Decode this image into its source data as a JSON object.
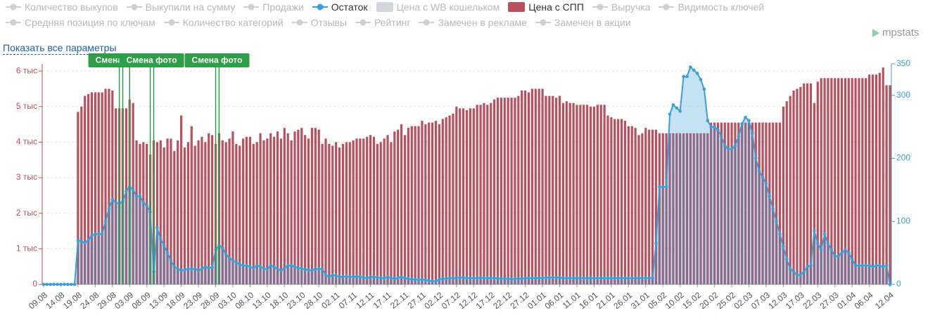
{
  "legend": [
    {
      "name": "Количество выкупов",
      "icon": "line",
      "color": "#cfcfcf",
      "active": false
    },
    {
      "name": "Выкупили на сумму",
      "icon": "line",
      "color": "#cfcfcf",
      "active": false
    },
    {
      "name": "Продажи",
      "icon": "line",
      "color": "#cfcfcf",
      "active": false
    },
    {
      "name": "Остаток",
      "icon": "line",
      "color": "#3a9fd6",
      "active": true
    },
    {
      "name": "Цена с WB кошельком",
      "icon": "rect",
      "color": "#d3d7db",
      "active": false
    },
    {
      "name": "Цена с СПП",
      "icon": "rect",
      "color": "#b9505e",
      "active": true
    },
    {
      "name": "Выручка",
      "icon": "line",
      "color": "#cfcfcf",
      "active": false
    },
    {
      "name": "Видимость ключей",
      "icon": "line",
      "color": "#cfcfcf",
      "active": false
    },
    {
      "name": "Средняя позиция по ключам",
      "icon": "line",
      "color": "#cfcfcf",
      "active": false
    },
    {
      "name": "Количество категорий",
      "icon": "line",
      "color": "#cfcfcf",
      "active": false
    },
    {
      "name": "Отзывы",
      "icon": "line",
      "color": "#cfcfcf",
      "active": false
    },
    {
      "name": "Рейтинг",
      "icon": "line",
      "color": "#cfcfcf",
      "active": false
    },
    {
      "name": "Замечен в рекламе",
      "icon": "line",
      "color": "#cfcfcf",
      "active": false
    },
    {
      "name": "Замечен в акции",
      "icon": "line",
      "color": "#cfcfcf",
      "active": false
    }
  ],
  "show_all_link": "Показать все параметры",
  "logo": "mpstats",
  "chart_data": {
    "type": "combo",
    "categories": [
      "09.08",
      null,
      null,
      null,
      null,
      "14.08",
      null,
      null,
      null,
      null,
      "19.08",
      null,
      null,
      null,
      null,
      "24.08",
      null,
      null,
      null,
      null,
      "29.08",
      null,
      null,
      null,
      null,
      "03.09",
      null,
      null,
      null,
      null,
      "08.09",
      null,
      null,
      null,
      null,
      "13.09",
      null,
      null,
      null,
      null,
      "18.09",
      null,
      null,
      null,
      null,
      "23.09",
      null,
      null,
      null,
      null,
      "28.09",
      null,
      null,
      null,
      null,
      "03.10",
      null,
      null,
      null,
      null,
      "08.10",
      null,
      null,
      null,
      null,
      "13.10",
      null,
      null,
      null,
      null,
      "18.10",
      null,
      null,
      null,
      null,
      "23.10",
      null,
      null,
      null,
      null,
      "28.10",
      null,
      null,
      null,
      null,
      "02.11",
      null,
      null,
      null,
      null,
      "07.11",
      null,
      null,
      null,
      null,
      "12.11",
      null,
      null,
      null,
      null,
      "17.11",
      null,
      null,
      null,
      null,
      "22.11",
      null,
      null,
      null,
      null,
      "27.11",
      null,
      null,
      null,
      null,
      "02.12",
      null,
      null,
      null,
      null,
      "07.12",
      null,
      null,
      null,
      null,
      "12.12",
      null,
      null,
      null,
      null,
      "17.12",
      null,
      null,
      null,
      null,
      "22.12",
      null,
      null,
      null,
      null,
      "27.12",
      null,
      null,
      null,
      null,
      "01.01",
      null,
      null,
      null,
      null,
      "06.01",
      null,
      null,
      null,
      null,
      "11.01",
      null,
      null,
      null,
      null,
      "16.01",
      null,
      null,
      null,
      null,
      "21.01",
      null,
      null,
      null,
      null,
      "26.01",
      null,
      null,
      null,
      null,
      "31.01",
      null,
      null,
      null,
      null,
      "05.02",
      null,
      null,
      null,
      null,
      "10.02",
      null,
      null,
      null,
      null,
      "15.02",
      null,
      null,
      null,
      null,
      "20.02",
      null,
      null,
      null,
      null,
      "25.02",
      null,
      null,
      null,
      null,
      "02.03",
      null,
      null,
      null,
      null,
      "07.03",
      null,
      null,
      null,
      null,
      "12.03",
      null,
      null,
      null,
      null,
      "17.03",
      null,
      null,
      null,
      null,
      "22.03",
      null,
      null,
      null,
      null,
      "27.03",
      null,
      null,
      null,
      null,
      "01.04",
      null,
      null,
      null,
      null,
      "06.04",
      null,
      null,
      null,
      null,
      null,
      "12.04"
    ],
    "series": [
      {
        "type": "bar",
        "axis": "y",
        "color": "#b9505e",
        "values": [
          null,
          null,
          null,
          null,
          null,
          null,
          null,
          null,
          null,
          null,
          4850,
          5000,
          5300,
          5350,
          5400,
          5400,
          5400,
          5400,
          5500,
          5500,
          5450,
          4950,
          4950,
          4950,
          4950,
          5200,
          5100,
          4050,
          3950,
          4000,
          3950,
          3650,
          4050,
          4000,
          4050,
          3850,
          4100,
          4100,
          3750,
          4050,
          4750,
          3850,
          4000,
          4450,
          3900,
          4050,
          4150,
          4000,
          4250,
          4200,
          3950,
          4250,
          4050,
          4000,
          4100,
          4300,
          3950,
          3900,
          4100,
          4150,
          4150,
          3950,
          4000,
          4250,
          4050,
          4100,
          4250,
          4150,
          4300,
          4100,
          4400,
          4250,
          4050,
          4300,
          4350,
          4400,
          4200,
          4100,
          4400,
          4400,
          4350,
          3950,
          4100,
          3950,
          3900,
          4000,
          3850,
          3950,
          4000,
          4000,
          4050,
          4100,
          4100,
          4100,
          4150,
          4200,
          4150,
          3950,
          4000,
          4100,
          4200,
          4000,
          4300,
          4350,
          4500,
          4200,
          4400,
          4450,
          4450,
          4450,
          4600,
          4500,
          4550,
          4550,
          4600,
          4500,
          4650,
          4700,
          4750,
          4800,
          5000,
          4950,
          4950,
          4900,
          4950,
          4950,
          5050,
          5050,
          5100,
          5050,
          5100,
          5200,
          5250,
          5250,
          5250,
          5250,
          5250,
          5250,
          5300,
          5450,
          5450,
          5400,
          5500,
          5500,
          5500,
          5500,
          5300,
          5300,
          5300,
          5250,
          5300,
          5100,
          5150,
          5100,
          5100,
          5050,
          5050,
          5050,
          5050,
          5000,
          5000,
          5050,
          5050,
          5050,
          4750,
          4700,
          4650,
          4650,
          4650,
          4600,
          4450,
          4450,
          4400,
          4200,
          4250,
          4400,
          4350,
          4350,
          4350,
          4250,
          4250,
          4250,
          4250,
          4250,
          4250,
          4250,
          4250,
          4250,
          4250,
          4250,
          4250,
          4250,
          4250,
          4250,
          4550,
          4550,
          4550,
          4550,
          4550,
          4550,
          4550,
          4550,
          4550,
          4550,
          4550,
          4550,
          4550,
          4550,
          4550,
          4550,
          4550,
          4550,
          4550,
          4550,
          4550,
          5000,
          5150,
          5300,
          5450,
          5500,
          5550,
          5650,
          5650,
          5650,
          5100,
          5700,
          5800,
          5800,
          5800,
          5800,
          5800,
          5800,
          5800,
          5800,
          5800,
          5800,
          5800,
          5800,
          5800,
          5800,
          5900,
          5900,
          5900,
          5950,
          6100,
          5600,
          5600
        ]
      },
      {
        "type": "line",
        "axis": "y2",
        "color": "#3a9fd6",
        "values": [
          0,
          0,
          0,
          0,
          0,
          0,
          0,
          0,
          0,
          0,
          70,
          68,
          66,
          70,
          78,
          80,
          80,
          80,
          100,
          120,
          135,
          130,
          128,
          132,
          148,
          155,
          150,
          140,
          140,
          130,
          125,
          115,
          20,
          90,
          72,
          62,
          50,
          38,
          28,
          25,
          22,
          23,
          25,
          24,
          25,
          22,
          25,
          28,
          26,
          27,
          55,
          62,
          58,
          48,
          42,
          38,
          35,
          32,
          30,
          30,
          28,
          26,
          30,
          28,
          25,
          24,
          30,
          28,
          25,
          22,
          26,
          30,
          30,
          28,
          26,
          25,
          24,
          23,
          22,
          25,
          24,
          25,
          15,
          12,
          15,
          14,
          12,
          12,
          13,
          12,
          12,
          13,
          12,
          11,
          10,
          12,
          12,
          11,
          10,
          10,
          12,
          10,
          9,
          10,
          12,
          10,
          9,
          8,
          8,
          7,
          8,
          7,
          6,
          5,
          5,
          8,
          9,
          9,
          10,
          10,
          10,
          11,
          11,
          10,
          10,
          10,
          10,
          11,
          10,
          10,
          10,
          10,
          10,
          9,
          9,
          9,
          8,
          9,
          9,
          9,
          10,
          10,
          10,
          10,
          10,
          10,
          11,
          11,
          11,
          11,
          11,
          10,
          10,
          10,
          10,
          10,
          10,
          10,
          10,
          10,
          10,
          10,
          10,
          10,
          10,
          10,
          10,
          10,
          10,
          10,
          10,
          10,
          10,
          10,
          10,
          10,
          10,
          10,
          65,
          155,
          155,
          155,
          270,
          285,
          280,
          275,
          330,
          330,
          345,
          340,
          335,
          325,
          310,
          260,
          250,
          250,
          245,
          235,
          220,
          215,
          215,
          220,
          235,
          255,
          265,
          260,
          240,
          200,
          180,
          170,
          160,
          140,
          120,
          100,
          80,
          60,
          40,
          25,
          20,
          15,
          15,
          20,
          28,
          30,
          85,
          65,
          55,
          80,
          65,
          55,
          45,
          45,
          50,
          55,
          50,
          40,
          30,
          30,
          30,
          30,
          30,
          28,
          30,
          30,
          28,
          30,
          0
        ]
      }
    ],
    "ylim": [
      0,
      6200
    ],
    "yticks": [
      0,
      {
        "value": 1000,
        "label": "1 тыс"
      },
      {
        "value": 2000,
        "label": "2 тыс"
      },
      {
        "value": 3000,
        "label": "3 тыс"
      },
      {
        "value": 4000,
        "label": "4 тыс"
      },
      {
        "value": 5000,
        "label": "5 тыс"
      },
      {
        "value": 6000,
        "label": "6 тыс"
      }
    ],
    "y2lim": [
      0,
      350
    ],
    "y2ticks": [
      0,
      100,
      200,
      300,
      350
    ],
    "grid": true,
    "annotations": [
      {
        "text": "Смена фото",
        "at": [
          22,
          23,
          25
        ]
      },
      {
        "text": "Смена фото",
        "at": [
          31,
          32
        ]
      },
      {
        "text": "Смена фото",
        "at": [
          50,
          51
        ]
      }
    ]
  }
}
